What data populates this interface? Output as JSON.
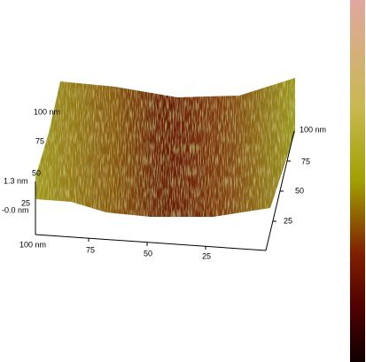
{
  "axes": {
    "back_y": {
      "ticks": [
        "100 nm",
        "75",
        "50",
        "25"
      ]
    },
    "z": {
      "ticks": [
        "1.3 nm",
        "-0.0 nm"
      ]
    },
    "front_x": {
      "ticks": [
        "100 nm",
        "75",
        "50",
        "25"
      ]
    },
    "right_y": {
      "ticks": [
        "100 nm",
        "75",
        "50",
        "25"
      ]
    }
  }
}
